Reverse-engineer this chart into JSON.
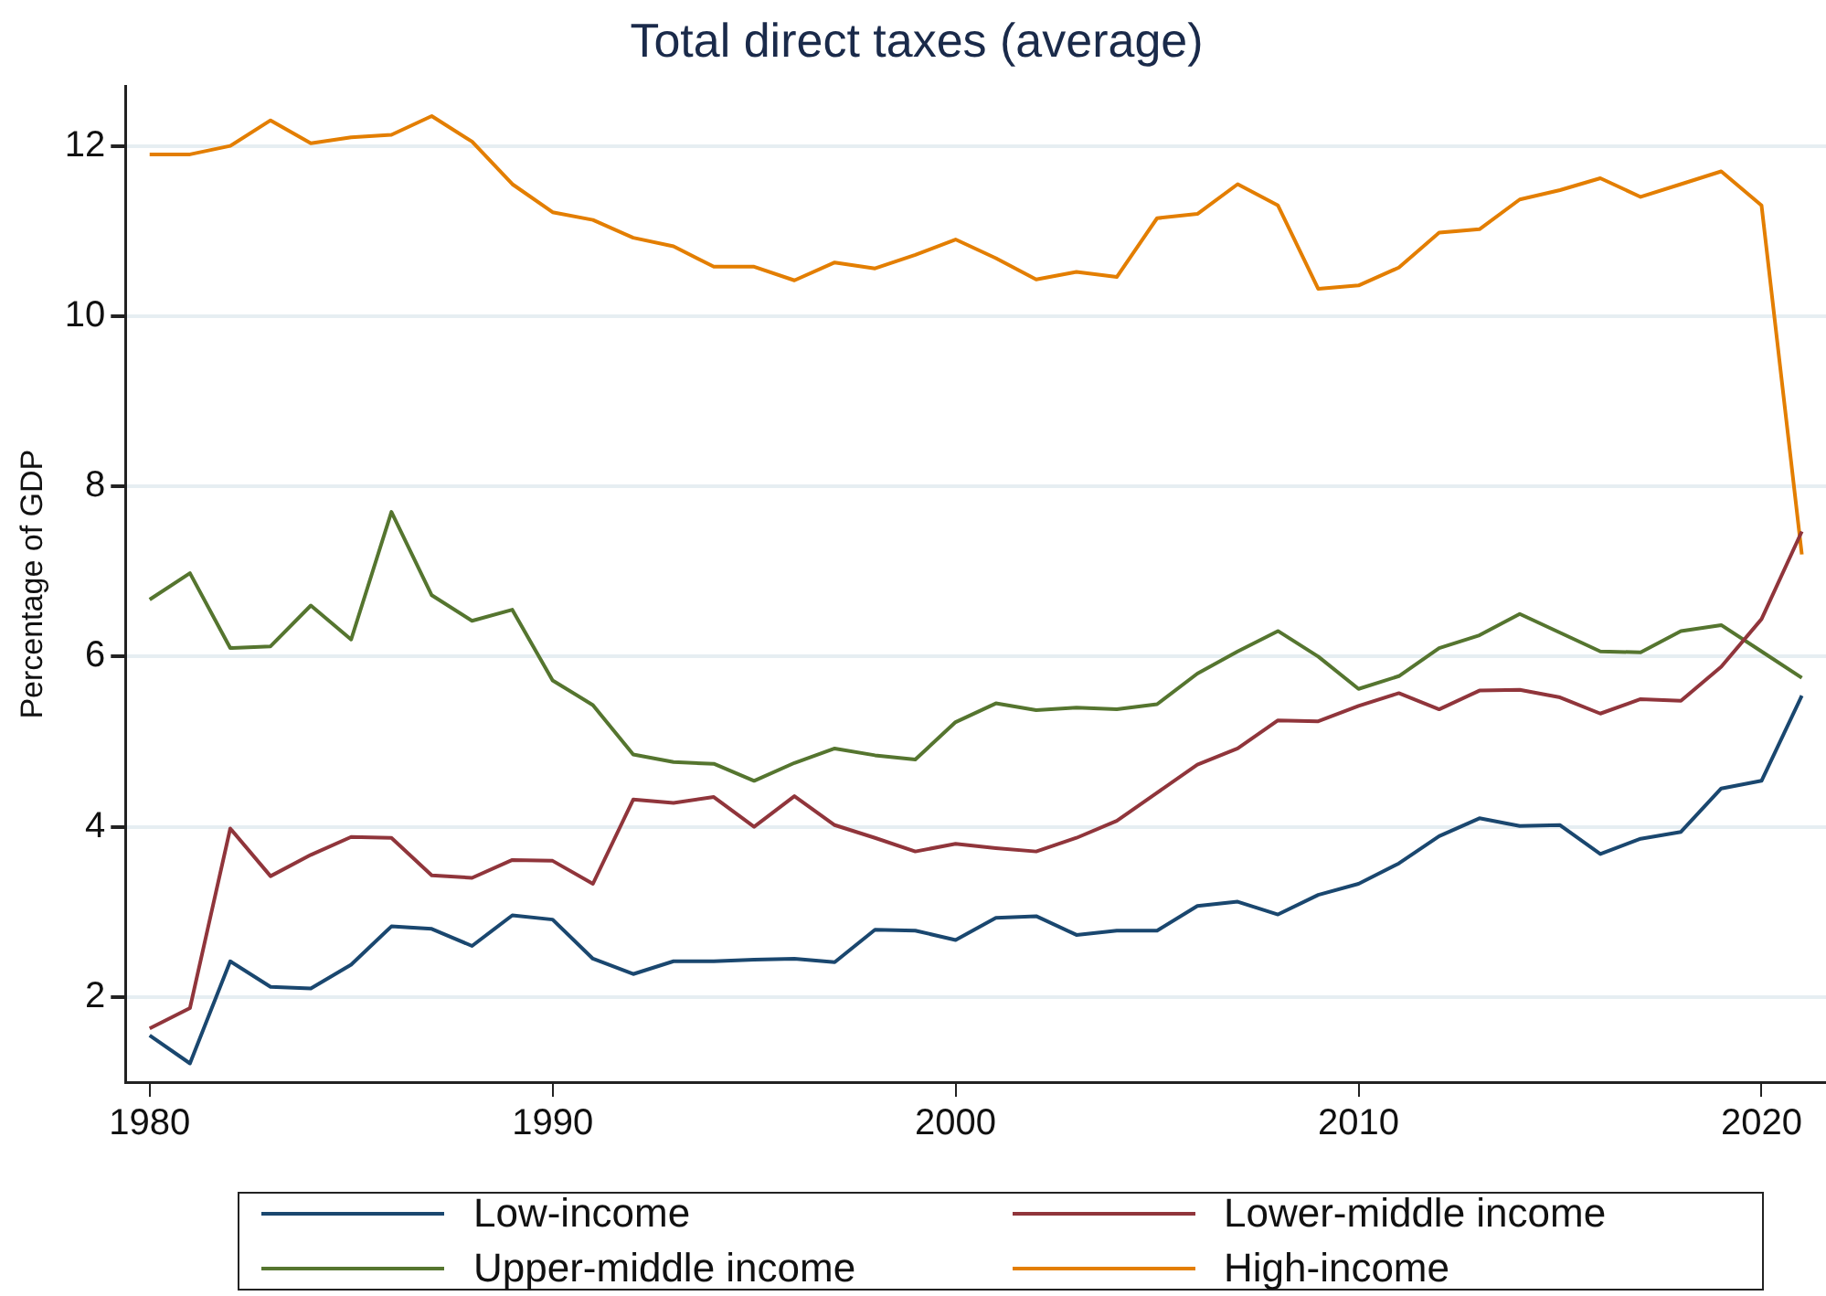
{
  "chart_data": {
    "type": "line",
    "title": "Total direct taxes (average)",
    "ylabel": "Percentage of GDP",
    "x": [
      1980,
      1981,
      1982,
      1983,
      1984,
      1985,
      1986,
      1987,
      1988,
      1989,
      1990,
      1991,
      1992,
      1993,
      1994,
      1995,
      1996,
      1997,
      1998,
      1999,
      2000,
      2001,
      2002,
      2003,
      2004,
      2005,
      2006,
      2007,
      2008,
      2009,
      2010,
      2011,
      2012,
      2013,
      2014,
      2015,
      2016,
      2017,
      2018,
      2019,
      2020,
      2021
    ],
    "series": [
      {
        "name": "Low-income",
        "color": "#1a476f",
        "values": [
          1.55,
          1.22,
          2.42,
          2.12,
          2.1,
          2.38,
          2.83,
          2.8,
          2.6,
          2.96,
          2.91,
          2.45,
          2.27,
          2.42,
          2.42,
          2.44,
          2.45,
          2.41,
          2.79,
          2.78,
          2.67,
          2.93,
          2.95,
          2.73,
          2.78,
          2.78,
          3.07,
          3.12,
          2.97,
          3.2,
          3.33,
          3.57,
          3.89,
          4.1,
          4.01,
          4.02,
          3.68,
          3.86,
          3.94,
          4.45,
          4.54,
          5.54
        ]
      },
      {
        "name": "Lower-middle income",
        "color": "#90353b",
        "values": [
          1.63,
          1.87,
          3.98,
          3.42,
          3.67,
          3.88,
          3.87,
          3.43,
          3.4,
          3.61,
          3.6,
          3.33,
          4.32,
          4.28,
          4.35,
          4.0,
          4.36,
          4.02,
          3.87,
          3.71,
          3.8,
          3.75,
          3.71,
          3.87,
          4.07,
          4.4,
          4.73,
          4.92,
          5.25,
          5.24,
          5.42,
          5.57,
          5.38,
          5.6,
          5.61,
          5.52,
          5.33,
          5.5,
          5.48,
          5.88,
          6.44,
          7.47
        ]
      },
      {
        "name": "Upper-middle income",
        "color": "#55752f",
        "values": [
          6.67,
          6.98,
          6.1,
          6.12,
          6.6,
          6.2,
          7.7,
          6.72,
          6.42,
          6.55,
          5.72,
          5.43,
          4.85,
          4.76,
          4.74,
          4.54,
          4.75,
          4.92,
          4.84,
          4.79,
          5.23,
          5.45,
          5.37,
          5.4,
          5.38,
          5.44,
          5.8,
          6.06,
          6.3,
          6.0,
          5.62,
          5.77,
          6.1,
          6.25,
          6.5,
          6.28,
          6.06,
          6.05,
          6.3,
          6.37,
          6.06,
          5.75
        ]
      },
      {
        "name": "High-income",
        "color": "#e37e00",
        "values": [
          11.9,
          11.9,
          12.0,
          12.3,
          12.03,
          12.1,
          12.13,
          12.35,
          12.05,
          11.55,
          11.22,
          11.13,
          10.92,
          10.82,
          10.58,
          10.58,
          10.42,
          10.63,
          10.56,
          10.72,
          10.9,
          10.68,
          10.43,
          10.52,
          10.46,
          11.15,
          11.2,
          11.55,
          11.3,
          10.32,
          10.36,
          10.57,
          10.98,
          11.02,
          11.37,
          11.48,
          11.62,
          11.4,
          11.55,
          11.7,
          11.3,
          7.2
        ]
      }
    ],
    "xlim": [
      1979.4,
      2021.6
    ],
    "xticks": [
      1980,
      1990,
      2000,
      2010,
      2020
    ],
    "ylim": [
      1,
      12.7
    ],
    "yticks": [
      2,
      4,
      6,
      8,
      10,
      12
    ],
    "grid": "y",
    "legend": "bottom",
    "marker": "none",
    "line_style": "solid"
  }
}
